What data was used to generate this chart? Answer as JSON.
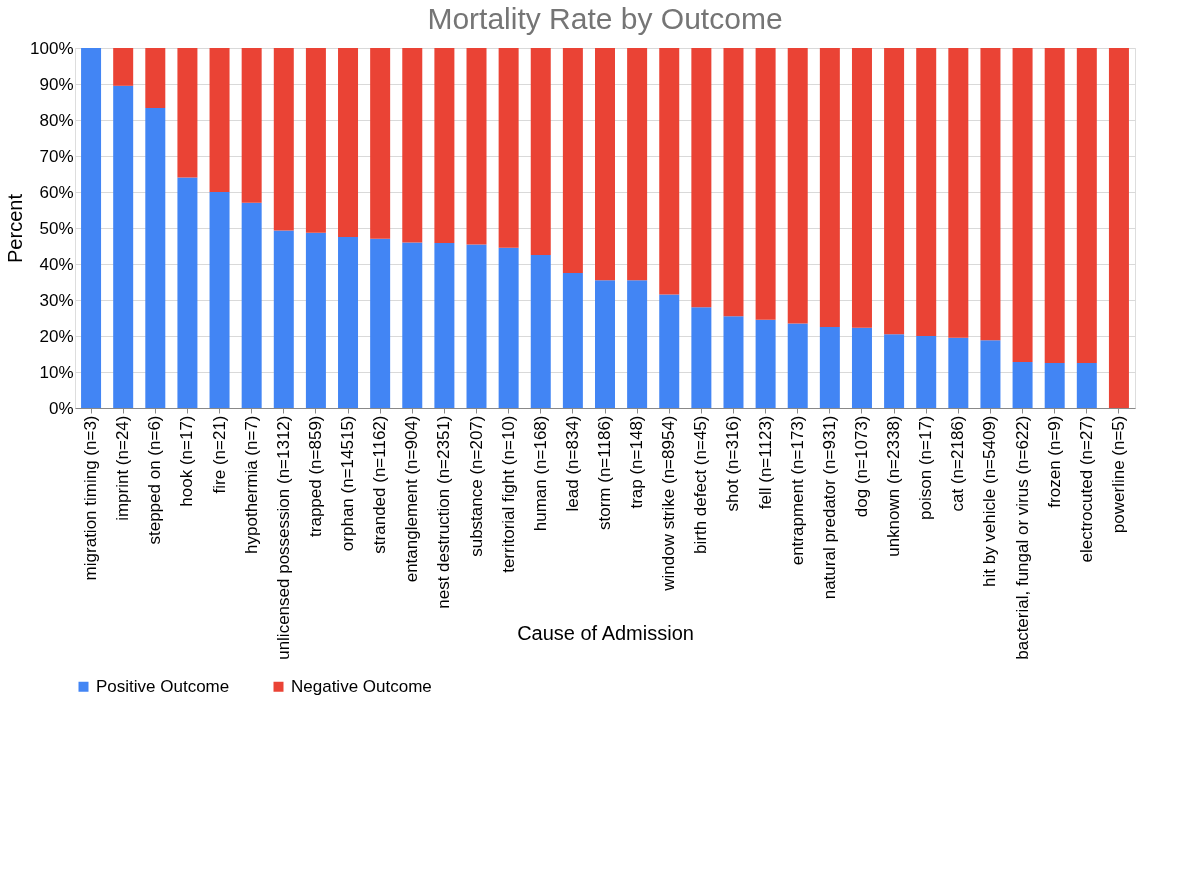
{
  "chart_data": {
    "type": "bar",
    "title": "Mortality Rate by Outcome",
    "xlabel": "Cause of Admission",
    "ylabel": "Percent",
    "categories": [
      "migration timing (n=3)",
      "imprint (n=24)",
      "stepped on (n=6)",
      "hook (n=17)",
      "fire (n=21)",
      "hypothermia (n=7)",
      "unlicensed possession (n=1312)",
      "trapped (n=859)",
      "orphan (n=14515)",
      "stranded (n=1162)",
      "entanglement (n=904)",
      "nest destruction (n=2351)",
      "substance (n=207)",
      "territorial fight (n=10)",
      "human (n=168)",
      "lead (n=834)",
      "storm (n=1186)",
      "trap (n=148)",
      "window strike (n=8954)",
      "birth defect (n=45)",
      "shot (n=316)",
      "fell (n=1123)",
      "entrapment (n=173)",
      "natural predator (n=931)",
      "dog (n=1073)",
      "unknown (n=2338)",
      "poison (n=17)",
      "cat (n=2186)",
      "hit by vehicle (n=5409)",
      "bacterial, fungal or virus (n=622)",
      "frozen (n=9)",
      "electrocuted (n=27)",
      "powerline (n=5)"
    ],
    "stacked": true,
    "series": [
      {
        "name": "Positive Outcome",
        "color": "#4285f4",
        "values": [
          100,
          89.5,
          83.3,
          64,
          60,
          57,
          49.3,
          48.7,
          47.5,
          47,
          46,
          45.8,
          45.4,
          44.5,
          42.5,
          37.5,
          35.5,
          35.5,
          31.5,
          28,
          25.5,
          24.5,
          23.5,
          22.5,
          22.3,
          20.5,
          20,
          19.5,
          18.8,
          12.8,
          12.5,
          12.5,
          0
        ]
      },
      {
        "name": "Negative Outcome",
        "color": "#ea4335",
        "values": [
          0,
          10.5,
          16.7,
          36,
          40,
          43,
          50.7,
          51.3,
          52.5,
          53,
          54,
          54.2,
          54.6,
          55.5,
          57.5,
          62.5,
          64.5,
          64.5,
          68.5,
          72,
          74.5,
          75.5,
          76.5,
          77.5,
          77.7,
          79.5,
          80,
          80.5,
          81.2,
          87.2,
          87.5,
          87.5,
          100
        ]
      }
    ],
    "ylim": [
      0,
      100
    ],
    "yticks": [
      {
        "value": 0,
        "label": "0%"
      },
      {
        "value": 10,
        "label": "10%"
      },
      {
        "value": 20,
        "label": "20%"
      },
      {
        "value": 30,
        "label": "30%"
      },
      {
        "value": 40,
        "label": "40%"
      },
      {
        "value": 50,
        "label": "50%"
      },
      {
        "value": 60,
        "label": "60%"
      },
      {
        "value": 70,
        "label": "70%"
      },
      {
        "value": 80,
        "label": "80%"
      },
      {
        "value": 90,
        "label": "90%"
      },
      {
        "value": 100,
        "label": "100%"
      }
    ],
    "grid": "y",
    "legend": "bottom"
  }
}
